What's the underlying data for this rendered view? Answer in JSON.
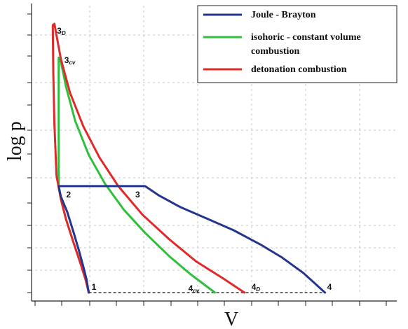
{
  "chart_data": {
    "type": "line",
    "title": "",
    "xlabel": "V",
    "ylabel": "log p",
    "xlim": [
      0,
      5.1
    ],
    "ylim": [
      0,
      10.8
    ],
    "grid": true,
    "legend_position": "top-right",
    "series": [
      {
        "name": "Joule - Brayton",
        "color": "#24358f",
        "points": [
          [
            1.0,
            0
          ],
          [
            0.96,
            0.5
          ],
          [
            0.9,
            1.0
          ],
          [
            0.82,
            1.6
          ],
          [
            0.72,
            2.3
          ],
          [
            0.6,
            3.1
          ],
          [
            0.48,
            3.7
          ],
          [
            0.44,
            4.1
          ],
          [
            0.6,
            4.1
          ],
          [
            1.0,
            4.1
          ],
          [
            1.5,
            4.1
          ],
          [
            2.05,
            4.1
          ],
          [
            2.3,
            3.75
          ],
          [
            2.7,
            3.3
          ],
          [
            3.2,
            2.85
          ],
          [
            3.7,
            2.4
          ],
          [
            4.2,
            1.85
          ],
          [
            4.6,
            1.35
          ],
          [
            5.0,
            0.75
          ],
          [
            5.4,
            0
          ]
        ]
      },
      {
        "name": "isohoric -  constant volume combustion",
        "color": "#2fbf3c",
        "points": [
          [
            1.0,
            0
          ],
          [
            0.95,
            0.45
          ],
          [
            0.85,
            1.1
          ],
          [
            0.72,
            1.9
          ],
          [
            0.58,
            2.8
          ],
          [
            0.48,
            3.6
          ],
          [
            0.44,
            4.1
          ],
          [
            0.44,
            5.6
          ],
          [
            0.44,
            7.2
          ],
          [
            0.44,
            8.6
          ],
          [
            0.44,
            9.05
          ],
          [
            0.48,
            8.9
          ],
          [
            0.58,
            7.9
          ],
          [
            0.75,
            6.6
          ],
          [
            1.0,
            5.3
          ],
          [
            1.3,
            4.2
          ],
          [
            1.65,
            3.2
          ],
          [
            2.05,
            2.3
          ],
          [
            2.5,
            1.4
          ],
          [
            2.9,
            0.7
          ],
          [
            3.35,
            0
          ]
        ]
      },
      {
        "name": "detonation combustion",
        "color": "#e02a2a",
        "points": [
          [
            1.0,
            0
          ],
          [
            0.94,
            0.5
          ],
          [
            0.85,
            1.1
          ],
          [
            0.72,
            1.9
          ],
          [
            0.58,
            2.8
          ],
          [
            0.48,
            3.6
          ],
          [
            0.4,
            4.5
          ],
          [
            0.36,
            6.5
          ],
          [
            0.34,
            8.5
          ],
          [
            0.33,
            10.3
          ],
          [
            0.36,
            10.35
          ],
          [
            0.48,
            9.0
          ],
          [
            0.65,
            7.7
          ],
          [
            0.9,
            6.4
          ],
          [
            1.2,
            5.2
          ],
          [
            1.55,
            4.1
          ],
          [
            2.0,
            3.0
          ],
          [
            2.5,
            2.05
          ],
          [
            3.0,
            1.2
          ],
          [
            3.5,
            0.55
          ],
          [
            3.9,
            0
          ]
        ]
      }
    ],
    "isobar": {
      "style": "dashed",
      "x": [
        1.0,
        5.4
      ],
      "y": 0
    },
    "point_labels": [
      {
        "name": "1",
        "main": "1",
        "sub": "",
        "x": 1.0,
        "y": 0
      },
      {
        "name": "2",
        "main": "2",
        "sub": "",
        "x": 0.45,
        "y": 4.1
      },
      {
        "name": "3",
        "main": "3",
        "sub": "",
        "x": 2.05,
        "y": 4.1
      },
      {
        "name": "4",
        "main": "4",
        "sub": "",
        "x": 5.4,
        "y": 0
      },
      {
        "name": "3d",
        "main": "3",
        "sub": "D",
        "x": 0.33,
        "y": 10.3
      },
      {
        "name": "3cv",
        "main": "3",
        "sub": "cv",
        "x": 0.44,
        "y": 9.05
      },
      {
        "name": "4cv",
        "main": "4",
        "sub": "cv",
        "x": 3.35,
        "y": 0
      },
      {
        "name": "4d",
        "main": "4",
        "sub": "D",
        "x": 3.9,
        "y": 0
      }
    ]
  }
}
